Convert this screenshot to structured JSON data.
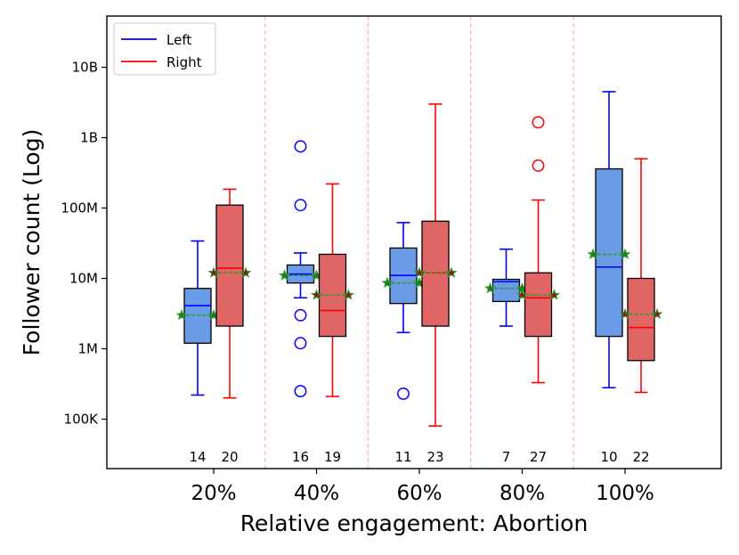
{
  "chart_data": {
    "type": "boxplot",
    "title": "",
    "xlabel": "Relative engagement: Abortion",
    "ylabel": "Follower count (Log)",
    "yscale": "log",
    "ylim": [
      20000,
      50000000000
    ],
    "yticks": [
      {
        "value": 100000,
        "label": "100K"
      },
      {
        "value": 1000000,
        "label": "1M"
      },
      {
        "value": 10000000,
        "label": "10M"
      },
      {
        "value": 100000000,
        "label": "100M"
      },
      {
        "value": 1000000000,
        "label": "1B"
      },
      {
        "value": 10000000000,
        "label": "10B"
      }
    ],
    "categories": [
      "20%",
      "40%",
      "60%",
      "80%",
      "100%"
    ],
    "legend": {
      "location": "upper-left",
      "entries": [
        {
          "label": "Left",
          "color": "#0000ff"
        },
        {
          "label": "Right",
          "color": "#ff0000"
        }
      ]
    },
    "mean_marker": "green star, dashed green mean line",
    "colors": {
      "left_line": "#0000ff",
      "left_fill": "#6a9be6",
      "right_line": "#ff0000",
      "right_fill": "#e06666",
      "mean": "#2a9d2a",
      "mean_star": "#1e7d1e",
      "divider": "#f4b6c8"
    },
    "series": [
      {
        "name": "Left",
        "boxes": [
          {
            "category": "20%",
            "whislo": 220000,
            "q1": 1200000,
            "median": 4100000,
            "q3": 7200000,
            "whishi": 34000000,
            "mean": 3000000,
            "fliers": [],
            "n": "14"
          },
          {
            "category": "40%",
            "whislo": 5300000,
            "q1": 8600000,
            "median": 11500000,
            "q3": 15500000,
            "whishi": 23000000,
            "mean": 11000000,
            "fliers": [
              750000000,
              110000000,
              3000000,
              1200000,
              250000
            ],
            "n": "16"
          },
          {
            "category": "60%",
            "whislo": 1700000,
            "q1": 4400000,
            "median": 11000000,
            "q3": 27000000,
            "whishi": 62000000,
            "mean": 8600000,
            "fliers": [
              230000
            ],
            "n": "11"
          },
          {
            "category": "80%",
            "whislo": 2100000,
            "q1": 4700000,
            "median": 9000000,
            "q3": 9700000,
            "whishi": 26000000,
            "mean": 7200000,
            "fliers": [],
            "n": "7"
          },
          {
            "category": "100%",
            "whislo": 280000,
            "q1": 1500000,
            "median": 14500000,
            "q3": 360000000,
            "whishi": 4500000000,
            "mean": 22000000,
            "fliers": [],
            "n": "10"
          }
        ]
      },
      {
        "name": "Right",
        "boxes": [
          {
            "category": "20%",
            "whislo": 200000,
            "q1": 2100000,
            "median": 14000000,
            "q3": 110000000,
            "whishi": 185000000,
            "mean": 12000000,
            "fliers": [],
            "n": "20"
          },
          {
            "category": "40%",
            "whislo": 210000,
            "q1": 1500000,
            "median": 3500000,
            "q3": 22000000,
            "whishi": 220000000,
            "mean": 5800000,
            "fliers": [],
            "n": "19"
          },
          {
            "category": "60%",
            "whislo": 80000,
            "q1": 2100000,
            "median": 12000000,
            "q3": 65000000,
            "whishi": 3000000000,
            "mean": 12000000,
            "fliers": [],
            "n": "23"
          },
          {
            "category": "80%",
            "whislo": 330000,
            "q1": 1500000,
            "median": 5300000,
            "q3": 12000000,
            "whishi": 130000000,
            "mean": 5800000,
            "fliers": [
              1650000000,
              400000000
            ],
            "n": "27"
          },
          {
            "category": "100%",
            "whislo": 240000,
            "q1": 680000,
            "median": 2000000,
            "q3": 10000000,
            "whishi": 500000000,
            "mean": 3100000,
            "fliers": [],
            "n": "22"
          }
        ]
      }
    ]
  }
}
